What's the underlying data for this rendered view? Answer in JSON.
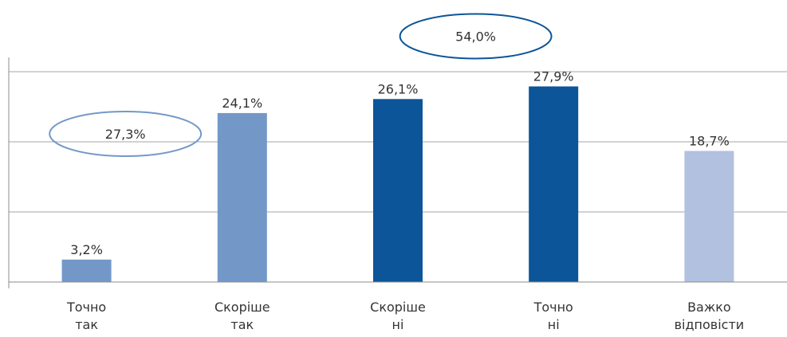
{
  "chart_data": {
    "type": "bar",
    "categories": [
      [
        "Точно",
        "так"
      ],
      [
        "Скоріше",
        "так"
      ],
      [
        "Скоріше",
        "ні"
      ],
      [
        "Точно",
        "ні"
      ],
      [
        "Важко",
        "відповісти"
      ]
    ],
    "values": [
      3.2,
      24.1,
      26.1,
      27.9,
      18.7
    ],
    "data_labels": [
      "3,2%",
      "24,1%",
      "26,1%",
      "27,9%",
      "18,7%"
    ],
    "bar_colors": [
      "#7398c8",
      "#7398c8",
      "#0b5598",
      "#0b5598",
      "#b1c1df"
    ],
    "ylim": [
      0,
      30
    ],
    "gridlines": [
      10,
      20,
      30
    ],
    "grid": true,
    "title": "",
    "xlabel": "",
    "ylabel": "",
    "annotations": [
      {
        "text": "27,3%",
        "groups": [
          0,
          1
        ],
        "color": "#7398c8"
      },
      {
        "text": "54,0%",
        "groups": [
          2,
          3
        ],
        "color": "#0b5598"
      }
    ]
  }
}
